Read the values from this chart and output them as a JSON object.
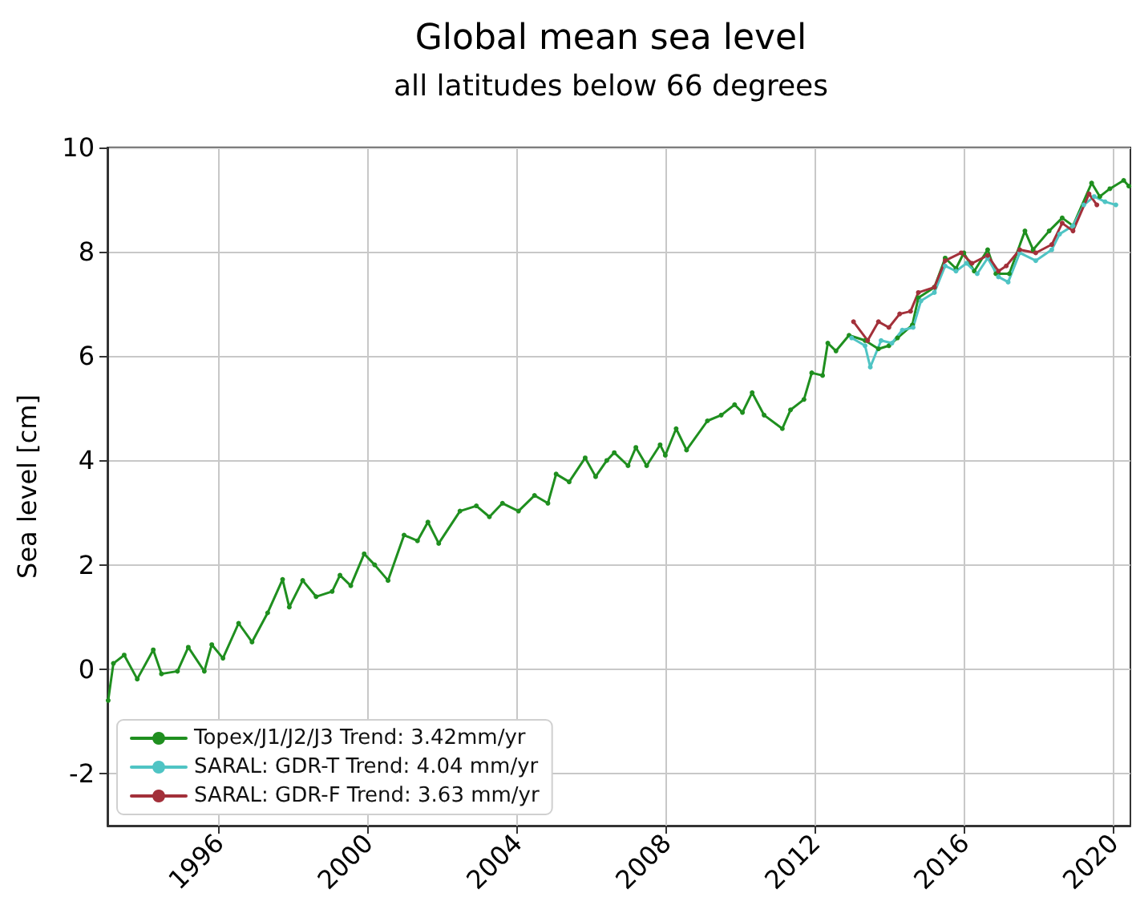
{
  "chart_data": {
    "type": "line",
    "title": "Global mean sea level",
    "subtitle": "all latitudes below 66 degrees",
    "ylabel": "Sea level [cm]",
    "xlim": [
      1993,
      2020.45
    ],
    "xticks": [
      1996,
      2000,
      2004,
      2008,
      2012,
      2016,
      2020
    ],
    "ylim": [
      -3,
      10
    ],
    "yticks": [
      -2,
      0,
      2,
      4,
      6,
      8,
      10
    ],
    "grid": true,
    "legend": "bottom left",
    "marker": "circle",
    "line_style": "solid",
    "series": [
      {
        "name": "Topex/J1/J2/J3 Trend: 3.42mm/yr",
        "color": "#1f8f1f",
        "x": [
          1993.02,
          1993.16,
          1993.45,
          1993.8,
          1994.23,
          1994.45,
          1994.88,
          1995.17,
          1995.6,
          1995.8,
          1996.1,
          1996.52,
          1996.88,
          1997.3,
          1997.7,
          1997.88,
          1998.24,
          1998.6,
          1999.03,
          1999.24,
          1999.53,
          1999.89,
          2000.17,
          2000.53,
          2000.96,
          2001.32,
          2001.6,
          2001.89,
          2002.46,
          2002.9,
          2003.25,
          2003.6,
          2004.03,
          2004.46,
          2004.82,
          2005.04,
          2005.39,
          2005.82,
          2006.1,
          2006.4,
          2006.6,
          2006.97,
          2007.18,
          2007.47,
          2007.83,
          2007.97,
          2008.26,
          2008.54,
          2009.1,
          2009.47,
          2009.83,
          2010.04,
          2010.3,
          2010.62,
          2011.11,
          2011.33,
          2011.69,
          2011.9,
          2012.19,
          2012.33,
          2012.55,
          2012.9,
          2013.33,
          2013.69,
          2013.97,
          2014.2,
          2014.6,
          2014.76,
          2015.19,
          2015.48,
          2015.77,
          2015.98,
          2016.26,
          2016.62,
          2016.84,
          2017.2,
          2017.62,
          2017.84,
          2018.27,
          2018.62,
          2018.91,
          2019.41,
          2019.63,
          2019.9,
          2020.27,
          2020.41
        ],
        "values": [
          -0.6,
          0.11,
          0.27,
          -0.19,
          0.37,
          -0.09,
          -0.04,
          0.42,
          -0.04,
          0.47,
          0.21,
          0.88,
          0.52,
          1.08,
          1.72,
          1.19,
          1.7,
          1.39,
          1.49,
          1.8,
          1.6,
          2.21,
          2.0,
          1.7,
          2.57,
          2.46,
          2.82,
          2.41,
          3.03,
          3.13,
          2.92,
          3.18,
          3.03,
          3.33,
          3.18,
          3.74,
          3.59,
          4.05,
          3.69,
          4.0,
          4.15,
          3.9,
          4.25,
          3.9,
          4.3,
          4.1,
          4.61,
          4.2,
          4.76,
          4.87,
          5.07,
          4.92,
          5.3,
          4.87,
          4.61,
          4.97,
          5.17,
          5.68,
          5.63,
          6.25,
          6.1,
          6.4,
          6.3,
          6.14,
          6.2,
          6.35,
          6.6,
          7.12,
          7.32,
          7.88,
          7.68,
          7.98,
          7.63,
          8.04,
          7.58,
          7.58,
          8.4,
          8.04,
          8.4,
          8.65,
          8.5,
          9.32,
          9.06,
          9.21,
          9.37,
          9.26
        ]
      },
      {
        "name": "SARAL: GDR-T Trend: 4.04 mm/yr",
        "color": "#4fc4c4",
        "x": [
          2012.97,
          2013.33,
          2013.47,
          2013.76,
          2014.05,
          2014.33,
          2014.62,
          2014.83,
          2015.19,
          2015.48,
          2015.77,
          2016.05,
          2016.34,
          2016.62,
          2016.91,
          2017.17,
          2017.48,
          2017.91,
          2018.34,
          2018.55,
          2018.91,
          2019.2,
          2019.48,
          2019.77,
          2020.06
        ],
        "values": [
          6.35,
          6.2,
          5.79,
          6.3,
          6.25,
          6.5,
          6.55,
          7.06,
          7.22,
          7.73,
          7.63,
          7.78,
          7.58,
          7.88,
          7.52,
          7.42,
          7.98,
          7.83,
          8.04,
          8.34,
          8.5,
          8.9,
          9.06,
          8.96,
          8.9
        ]
      },
      {
        "name": "SARAL: GDR-F Trend: 3.63 mm/yr",
        "color": "#a3303a",
        "x": [
          2013.02,
          2013.4,
          2013.69,
          2013.97,
          2014.26,
          2014.55,
          2014.76,
          2015.19,
          2015.48,
          2015.91,
          2016.2,
          2016.62,
          2016.91,
          2017.12,
          2017.48,
          2017.91,
          2018.34,
          2018.62,
          2018.91,
          2019.34,
          2019.55
        ],
        "values": [
          6.66,
          6.3,
          6.66,
          6.55,
          6.81,
          6.86,
          7.22,
          7.32,
          7.83,
          7.98,
          7.78,
          7.93,
          7.63,
          7.73,
          8.04,
          7.98,
          8.14,
          8.55,
          8.4,
          9.11,
          8.9
        ]
      }
    ]
  }
}
